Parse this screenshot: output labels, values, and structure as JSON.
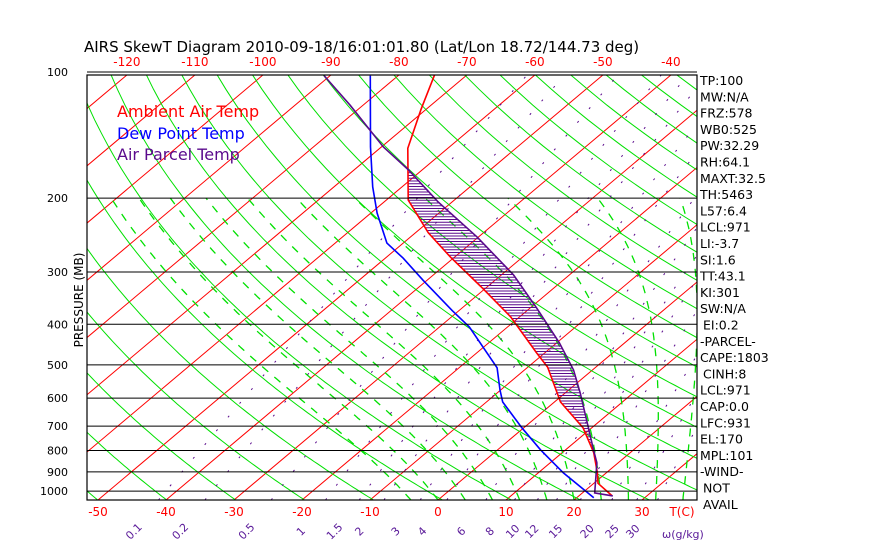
{
  "chart_data": {
    "type": "skewt",
    "title": "AIRS SkewT Diagram 2010-09-18/16:01:01.80 (Lat/Lon 18.72/144.73 deg)",
    "ylabel": "PRESSURE (MB)",
    "xlabel": "T(C)",
    "mixing_ratio_label": "ω(g/kg)",
    "pressure_ticks": [
      100,
      200,
      300,
      400,
      500,
      600,
      700,
      800,
      900,
      1000
    ],
    "top_temp_ticks": [
      -120,
      -110,
      -100,
      -90,
      -80,
      -70,
      -60,
      -50,
      -40
    ],
    "bottom_temp_ticks": [
      -50,
      -40,
      -30,
      -20,
      -10,
      0,
      10,
      20,
      30
    ],
    "mixing_ratio_ticks": [
      "0.1",
      "0.2",
      "0.5",
      "1",
      "1.5",
      "2",
      "3",
      "4",
      "6",
      "8",
      "10",
      "12",
      "15",
      "20",
      "25",
      "30"
    ],
    "ylim_mb": [
      1050,
      100
    ],
    "legend": [
      {
        "name": "Ambient Air Temp",
        "color": "#ff0000"
      },
      {
        "name": "Dew Point Temp",
        "color": "#0000ff"
      },
      {
        "name": "Air Parcel Temp",
        "color": "#5a0a8c"
      }
    ],
    "series": [
      {
        "name": "Ambient Air Temp",
        "color": "#ff0000",
        "p": [
          1027,
          958,
          905,
          809,
          706,
          613,
          506,
          468,
          384,
          325,
          276,
          242,
          202,
          152,
          123,
          101
        ],
        "t": [
          24.9,
          20.6,
          18.7,
          14.6,
          8.7,
          0.9,
          -7.1,
          -11.2,
          -21.3,
          -31,
          -40.7,
          -48.1,
          -56.8,
          -65.9,
          -70.7,
          -74.9
        ]
      },
      {
        "name": "Dew Point Temp",
        "color": "#0000ff",
        "p": [
          1037,
          905,
          797,
          706,
          613,
          574,
          508,
          406,
          371,
          314,
          278,
          256,
          217,
          188,
          151,
          102
        ],
        "t": [
          22.5,
          13.7,
          6.3,
          -0.3,
          -7.6,
          -10.1,
          -14.4,
          -25.6,
          -31,
          -40.6,
          -47.4,
          -52.4,
          -59.1,
          -64.3,
          -71.6,
          -84.1
        ]
      },
      {
        "name": "Air Parcel Temp",
        "color": "#5a0a8c",
        "p": [
          1027,
          1010,
          857,
          797,
          688,
          583,
          514,
          443,
          366,
          305,
          248,
          204,
          171,
          151,
          120,
          102
        ],
        "t": [
          25,
          21.8,
          16.9,
          14.1,
          8.5,
          2.2,
          -2.8,
          -9.6,
          -19,
          -28.2,
          -40.1,
          -52.1,
          -62.1,
          -69.7,
          -81.9,
          -90.9
        ]
      }
    ],
    "hatch_range_mb": [
      931,
      170
    ]
  },
  "indices": [
    "TP:100",
    "MW:N/A",
    "FRZ:578",
    "WB0:525",
    "PW:32.29",
    "RH:64.1",
    "MAXT:32.5",
    "TH:5463",
    "L57:6.4",
    "LCL:971",
    "LI:-3.7",
    "SI:1.6",
    "TT:43.1",
    "KI:301",
    "SW:N/A",
    "EI:0.2",
    "-PARCEL-",
    "CAPE:1803",
    "CINH:8",
    "LCL:971",
    "CAP:0.0",
    "LFC:931",
    "EL:170",
    "MPL:101",
    "-WIND-",
    "NOT",
    "AVAIL"
  ],
  "colors": {
    "isotherm": "#ff0000",
    "adiabat": "#00e000",
    "mixing": "#5a0a8c"
  }
}
